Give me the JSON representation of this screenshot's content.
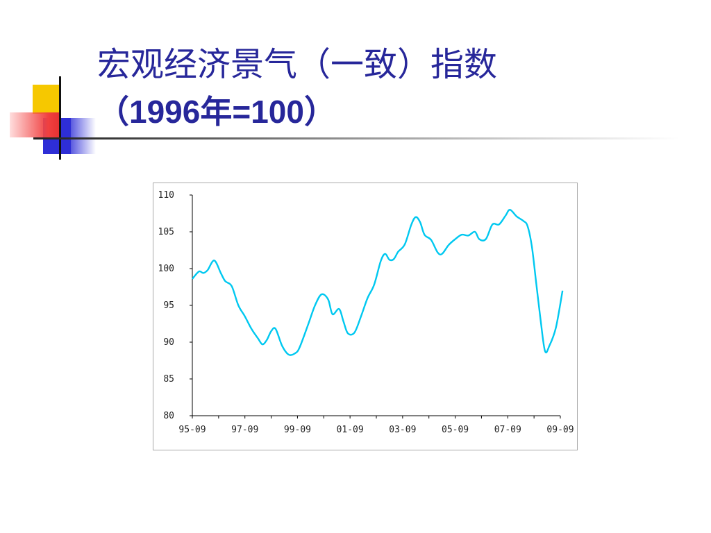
{
  "slide": {
    "title_line1": "宏观经济景气（一致）指数",
    "title_line2": "（1996年=100）"
  },
  "colors": {
    "title": "#27279a",
    "line": "#00c8f0"
  },
  "chart_data": {
    "type": "line",
    "title": "",
    "xlabel": "",
    "ylabel": "",
    "ylim": [
      80,
      110
    ],
    "yticks": [
      110,
      105,
      100,
      95,
      90,
      85,
      80
    ],
    "xticks": [
      "95-09",
      "97-09",
      "99-09",
      "01-09",
      "03-09",
      "05-09",
      "07-09",
      "09-09"
    ],
    "grid": false,
    "legend": "none",
    "series": [
      {
        "values_by_month": [
          [
            "1995-09",
            98.6
          ],
          [
            "1995-12",
            99.6
          ],
          [
            "1996-02",
            99.4
          ],
          [
            "1996-04",
            99.8
          ],
          [
            "1996-07",
            101.1
          ],
          [
            "1996-10",
            99.4
          ],
          [
            "1996-12",
            98.3
          ],
          [
            "1997-03",
            97.6
          ],
          [
            "1997-06",
            95.0
          ],
          [
            "1997-09",
            93.5
          ],
          [
            "1997-12",
            91.8
          ],
          [
            "1998-03",
            90.5
          ],
          [
            "1998-05",
            89.7
          ],
          [
            "1998-07",
            90.3
          ],
          [
            "1998-09",
            91.5
          ],
          [
            "1998-11",
            91.8
          ],
          [
            "1999-02",
            89.5
          ],
          [
            "1999-05",
            88.3
          ],
          [
            "1999-08",
            88.5
          ],
          [
            "1999-10",
            89.3
          ],
          [
            "2000-02",
            92.5
          ],
          [
            "2000-05",
            95.0
          ],
          [
            "2000-08",
            96.5
          ],
          [
            "2000-11",
            95.8
          ],
          [
            "2001-01",
            93.8
          ],
          [
            "2001-04",
            94.5
          ],
          [
            "2001-06",
            92.8
          ],
          [
            "2001-08",
            91.2
          ],
          [
            "2001-11",
            91.3
          ],
          [
            "2002-02",
            93.5
          ],
          [
            "2002-05",
            96.0
          ],
          [
            "2002-08",
            97.8
          ],
          [
            "2002-11",
            101.0
          ],
          [
            "2003-01",
            102.0
          ],
          [
            "2003-03",
            101.2
          ],
          [
            "2003-05",
            101.3
          ],
          [
            "2003-07",
            102.3
          ],
          [
            "2003-10",
            103.3
          ],
          [
            "2004-01",
            106.0
          ],
          [
            "2004-03",
            107.0
          ],
          [
            "2004-05",
            106.3
          ],
          [
            "2004-07",
            104.6
          ],
          [
            "2004-10",
            103.9
          ],
          [
            "2005-01",
            102.2
          ],
          [
            "2005-03",
            102.0
          ],
          [
            "2005-06",
            103.2
          ],
          [
            "2005-09",
            104.0
          ],
          [
            "2005-12",
            104.6
          ],
          [
            "2006-03",
            104.5
          ],
          [
            "2006-06",
            105.0
          ],
          [
            "2006-08",
            104.0
          ],
          [
            "2006-11",
            104.0
          ],
          [
            "2007-02",
            106.0
          ],
          [
            "2007-05",
            106.0
          ],
          [
            "2007-08",
            107.2
          ],
          [
            "2007-10",
            108.0
          ],
          [
            "2008-01",
            107.1
          ],
          [
            "2008-04",
            106.5
          ],
          [
            "2008-06",
            105.8
          ],
          [
            "2008-08",
            103.0
          ],
          [
            "2008-10",
            98.0
          ],
          [
            "2008-12",
            93.0
          ],
          [
            "2009-02",
            88.8
          ],
          [
            "2009-04",
            89.5
          ],
          [
            "2009-07",
            92.0
          ],
          [
            "2009-10",
            97.0
          ]
        ]
      }
    ]
  }
}
